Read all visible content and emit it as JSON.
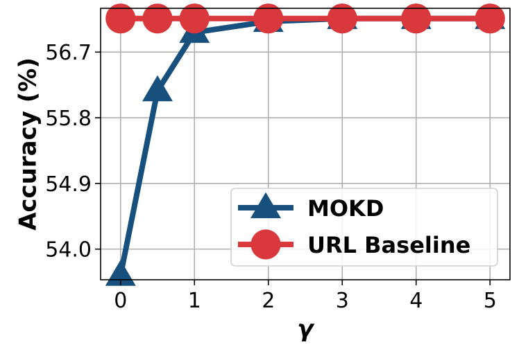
{
  "chart_data": {
    "type": "line",
    "xlabel": "γ",
    "ylabel": "Accuracy (%)",
    "x": [
      0,
      0.5,
      1,
      2,
      3,
      4,
      5
    ],
    "xticks": [
      0,
      1,
      2,
      3,
      4,
      5
    ],
    "xtick_labels": [
      "0",
      "1",
      "2",
      "3",
      "4",
      "5"
    ],
    "xlim": [
      -0.27,
      5.27
    ],
    "yticks": [
      54.0,
      54.9,
      55.8,
      56.7
    ],
    "ytick_labels": [
      "54.0",
      "54.9",
      "55.8",
      "56.7"
    ],
    "ylim": [
      53.58,
      57.3
    ],
    "grid": true,
    "legend_position": "lower-right",
    "series": [
      {
        "name": "MOKD",
        "color": "#17507c",
        "marker": "triangle",
        "values": [
          53.64,
          56.17,
          56.97,
          57.12,
          57.16,
          57.16,
          57.16
        ]
      },
      {
        "name": "URL Baseline",
        "color": "#d9383c",
        "marker": "circle",
        "values": [
          57.16,
          57.16,
          57.16,
          57.16,
          57.16,
          57.16,
          57.16
        ]
      }
    ]
  }
}
